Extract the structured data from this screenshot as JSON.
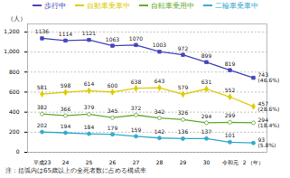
{
  "chart_data": {
    "type": "line",
    "categories": [
      "平成23",
      "24",
      "25",
      "26",
      "27",
      "28",
      "29",
      "30",
      "令和元",
      "2 （年）"
    ],
    "series": [
      {
        "name": "歩行中",
        "color": "#4444bb",
        "marker": "square",
        "values": [
          1136,
          1114,
          1121,
          1063,
          1070,
          1003,
          972,
          899,
          819,
          743
        ],
        "annotation": "(46.6%)"
      },
      {
        "name": "自動車乗車中",
        "color": "#ddcc00",
        "marker": "diamond",
        "values": [
          581,
          598,
          614,
          600,
          638,
          643,
          579,
          631,
          552,
          457
        ],
        "annotation": "(28.6%)"
      },
      {
        "name": "自転車乗用中",
        "color": "#66aa33",
        "marker": "circle-open",
        "values": [
          382,
          366,
          379,
          345,
          372,
          342,
          326,
          294,
          299,
          294
        ],
        "annotation": "(18.4%)"
      },
      {
        "name": "二輪車乗車中",
        "color": "#33aacc",
        "marker": "circle",
        "values": [
          202,
          194,
          184,
          179,
          159,
          142,
          136,
          137,
          101,
          93
        ],
        "annotation": "(5.8%)"
      }
    ],
    "ylabel": "（人）",
    "ylim": [
      0,
      1280
    ],
    "yticks": [
      0,
      200,
      400,
      600,
      800,
      1000,
      1200
    ],
    "grid": true,
    "data_labels": true,
    "legend": "top",
    "note": "注：括弧内は65歳以上の全死者数に占める構成率"
  }
}
